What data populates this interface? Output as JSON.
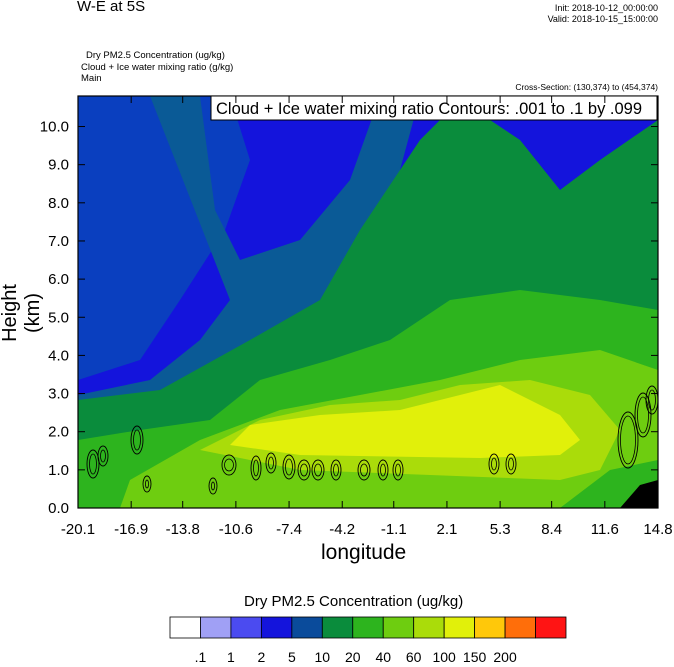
{
  "header": {
    "title": "W-E at 5S",
    "init": "Init: 2018-10-12_00:00:00",
    "valid": "Valid: 2018-10-15_15:00:00",
    "fields": [
      "Dry PM2.5 Concentration   (ug/kg)",
      "Cloud + Ice water mixing ratio   (g/kg)",
      "Main"
    ],
    "cross_section": "Cross-Section: (130,374) to (454,374)"
  },
  "chart_data": {
    "type": "heatmap",
    "title": "W-E at 5S",
    "contour_label": "Cloud + Ice water mixing ratio Contours: .001 to .1 by .099",
    "xlabel": "longitude",
    "ylabel": "Height (km)",
    "x_ticks": [
      "-20.1",
      "-16.9",
      "-13.8",
      "-10.6",
      "-7.4",
      "-4.2",
      "-1.1",
      "2.1",
      "5.3",
      "8.4",
      "11.6",
      "14.8"
    ],
    "y_ticks": [
      "0.0",
      "1.0",
      "2.0",
      "3.0",
      "4.0",
      "5.0",
      "6.0",
      "7.0",
      "8.0",
      "9.0",
      "10.0"
    ],
    "xlim": [
      -20.1,
      14.8
    ],
    "ylim": [
      0,
      10.8
    ],
    "colorbar": {
      "title": "Dry PM2.5 Concentration  (ug/kg)",
      "levels": [
        ".1",
        "1",
        "2",
        "5",
        "10",
        "20",
        "40",
        "60",
        "100",
        "150",
        "200"
      ],
      "colors": [
        "#ffffff",
        "#a0a0f5",
        "#4b4bf0",
        "#1414dc",
        "#0a4b9b",
        "#0a8c3c",
        "#2db41e",
        "#6ecd10",
        "#aadc0a",
        "#e1f00a",
        "#ffc80a",
        "#ff6e0a",
        "#ff1414"
      ]
    },
    "colors": {
      "dark_blue": "#0a3fbf",
      "blue": "#1414dc",
      "teal": "#0a5a96",
      "dark_green": "#0a8c3c",
      "green": "#2db41e",
      "light_green": "#6ecd10",
      "yellow_green": "#aadc0a",
      "yellow": "#e1f00a"
    }
  }
}
